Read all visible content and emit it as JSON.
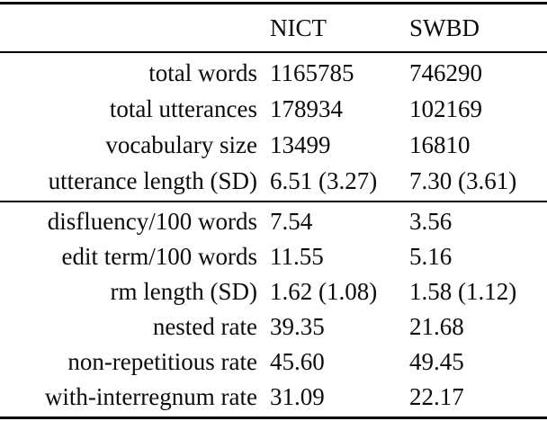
{
  "table": {
    "columns": [
      "NICT",
      "SWBD"
    ],
    "sections": [
      {
        "rows": [
          {
            "label": "total words",
            "nict": "1165785",
            "swbd": "746290"
          },
          {
            "label": "total utterances",
            "nict": "178934",
            "swbd": "102169"
          },
          {
            "label": "vocabulary size",
            "nict": "13499",
            "swbd": "16810"
          },
          {
            "label": "utterance length (SD)",
            "nict": "6.51 (3.27)",
            "swbd": "7.30 (3.61)"
          }
        ]
      },
      {
        "rows": [
          {
            "label": "disfluency/100 words",
            "nict": "7.54",
            "swbd": "3.56"
          },
          {
            "label": "edit term/100 words",
            "nict": "11.55",
            "swbd": "5.16"
          },
          {
            "label": "rm length (SD)",
            "nict": "1.62 (1.08)",
            "swbd": "1.58 (1.12)"
          },
          {
            "label": "nested rate",
            "nict": "39.35",
            "swbd": "21.68"
          },
          {
            "label": "non-repetitious rate",
            "nict": "45.60",
            "swbd": "49.45"
          },
          {
            "label": "with-interregnum rate",
            "nict": "31.09",
            "swbd": "22.17"
          }
        ]
      }
    ]
  }
}
